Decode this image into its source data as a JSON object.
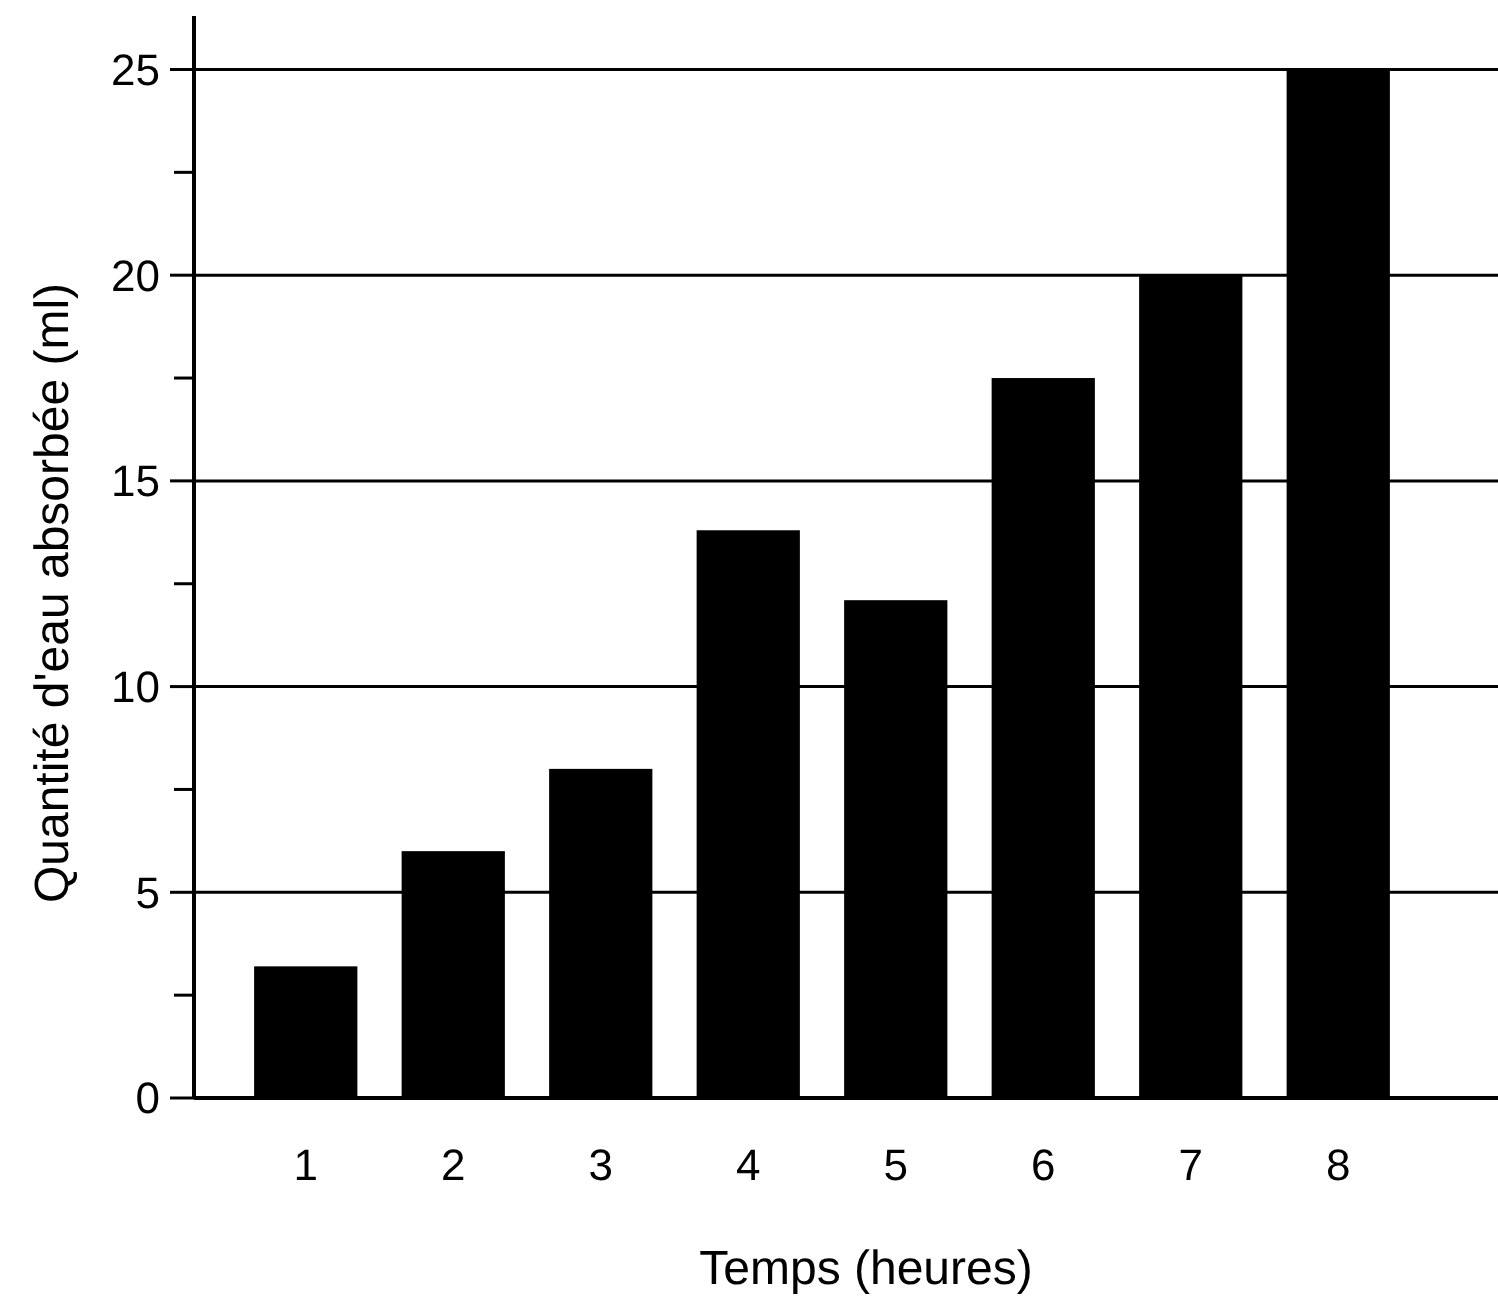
{
  "chart_data": {
    "type": "bar",
    "xlabel": "Temps (heures)",
    "ylabel": "Quantité d'eau absorbée (ml)",
    "categories": [
      "1",
      "2",
      "3",
      "4",
      "5",
      "6",
      "7",
      "8"
    ],
    "values": [
      3.2,
      6,
      8,
      13.8,
      12.1,
      17.5,
      20,
      25
    ],
    "color": "#000000",
    "ylim": [
      0,
      26.3
    ],
    "yticks": [
      0,
      {
        "value": 2.5,
        "label": null
      },
      5,
      {
        "value": 7.5,
        "label": null
      },
      10,
      {
        "value": 12.5,
        "label": null
      },
      15,
      {
        "value": 17.5,
        "label": null
      },
      20,
      {
        "value": 22.5,
        "label": null
      },
      25
    ],
    "grid": "y"
  }
}
